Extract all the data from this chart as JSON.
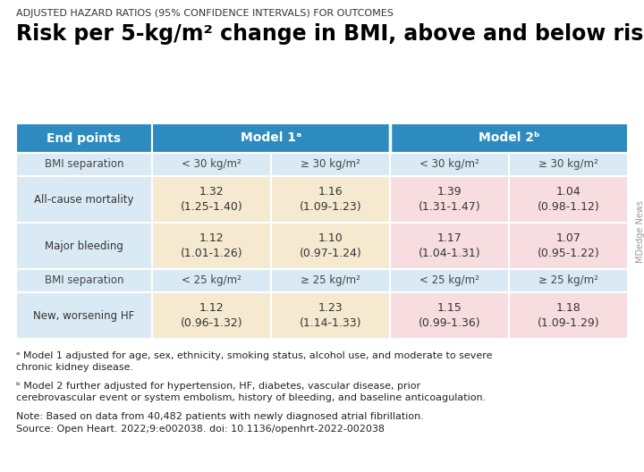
{
  "supertitle": "ADJUSTED HAZARD RATIOS (95% CONFIDENCE INTERVALS) FOR OUTCOMES",
  "title_line1": "Risk per 5-kg/m",
  "title_sup": "2",
  "title_line2": " change in BMI, above and below risk nadir",
  "header_bg": "#2e8bc0",
  "header_text_color": "#ffffff",
  "row_label_bg": "#daeaf5",
  "model1_col1_bg": "#f5ead0",
  "model1_col2_bg": "#f5ead0",
  "model2_col1_bg": "#f7dde0",
  "model2_col2_bg": "#f7dde0",
  "sep_row_bg": "#daeaf5",
  "border_color": "#ffffff",
  "sub_headers_30": [
    "< 30 kg/m²",
    "≥ 30 kg/m²",
    "< 30 kg/m²",
    "≥ 30 kg/m²"
  ],
  "sub_headers_25": [
    "< 25 kg/m²",
    "≥ 25 kg/m²",
    "< 25 kg/m²",
    "≥ 25 kg/m²"
  ],
  "rows_group1": [
    {
      "label": "All-cause mortality",
      "values": [
        "1.32\n(1.25-1.40)",
        "1.16\n(1.09-1.23)",
        "1.39\n(1.31-1.47)",
        "1.04\n(0.98-1.12)"
      ]
    },
    {
      "label": "Major bleeding",
      "values": [
        "1.12\n(1.01-1.26)",
        "1.10\n(0.97-1.24)",
        "1.17\n(1.04-1.31)",
        "1.07\n(0.95-1.22)"
      ]
    }
  ],
  "rows_group2": [
    {
      "label": "New, worsening HF",
      "values": [
        "1.12\n(0.96-1.32)",
        "1.23\n(1.14-1.33)",
        "1.15\n(0.99-1.36)",
        "1.18\n(1.09-1.29)"
      ]
    }
  ],
  "footnote_a": "ᵃ Model 1 adjusted for age, sex, ethnicity, smoking status, alcohol use, and moderate to severe\nchronic kidney disease.",
  "footnote_b": "ᵇ Model 2 further adjusted for hypertension, HF, diabetes, vascular disease, prior\ncerebrovascular event or system embolism, history of bleeding, and baseline anticoagulation.",
  "footnote_note": "Note: Based on data from 40,482 patients with newly diagnosed atrial fibrillation.",
  "footnote_source": "Source: Open Heart. 2022;9:e002038. doi: 10.1136/openhrt-2022-002038",
  "watermark": "MDedge News",
  "bg_color": "#ffffff",
  "fig_w": 7.2,
  "fig_h": 5.28,
  "dpi": 100
}
